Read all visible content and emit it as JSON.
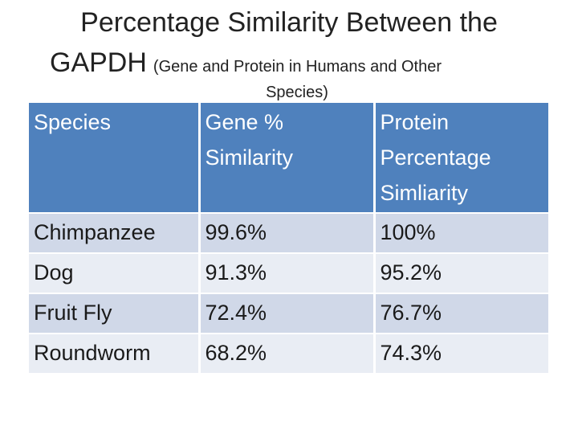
{
  "title": {
    "main_line1": "Percentage Similarity Between the",
    "main_line2": "GAPDH",
    "sub_line2": "(Gene and Protein in Humans and Other",
    "sub_line3": "Species)"
  },
  "table": {
    "headers": [
      "Species",
      "Gene % Similarity",
      "Protein Percentage Simliarity"
    ],
    "rows": [
      [
        "Chimpanzee",
        "99.6%",
        "100%"
      ],
      [
        "Dog",
        "91.3%",
        "95.2%"
      ],
      [
        "Fruit Fly",
        "72.4%",
        "76.7%"
      ],
      [
        "Roundworm",
        "68.2%",
        "74.3%"
      ]
    ]
  },
  "colors": {
    "header_bg": "#4f81bd",
    "row_band_dark": "#d0d8e8",
    "row_band_light": "#e9edf4"
  }
}
